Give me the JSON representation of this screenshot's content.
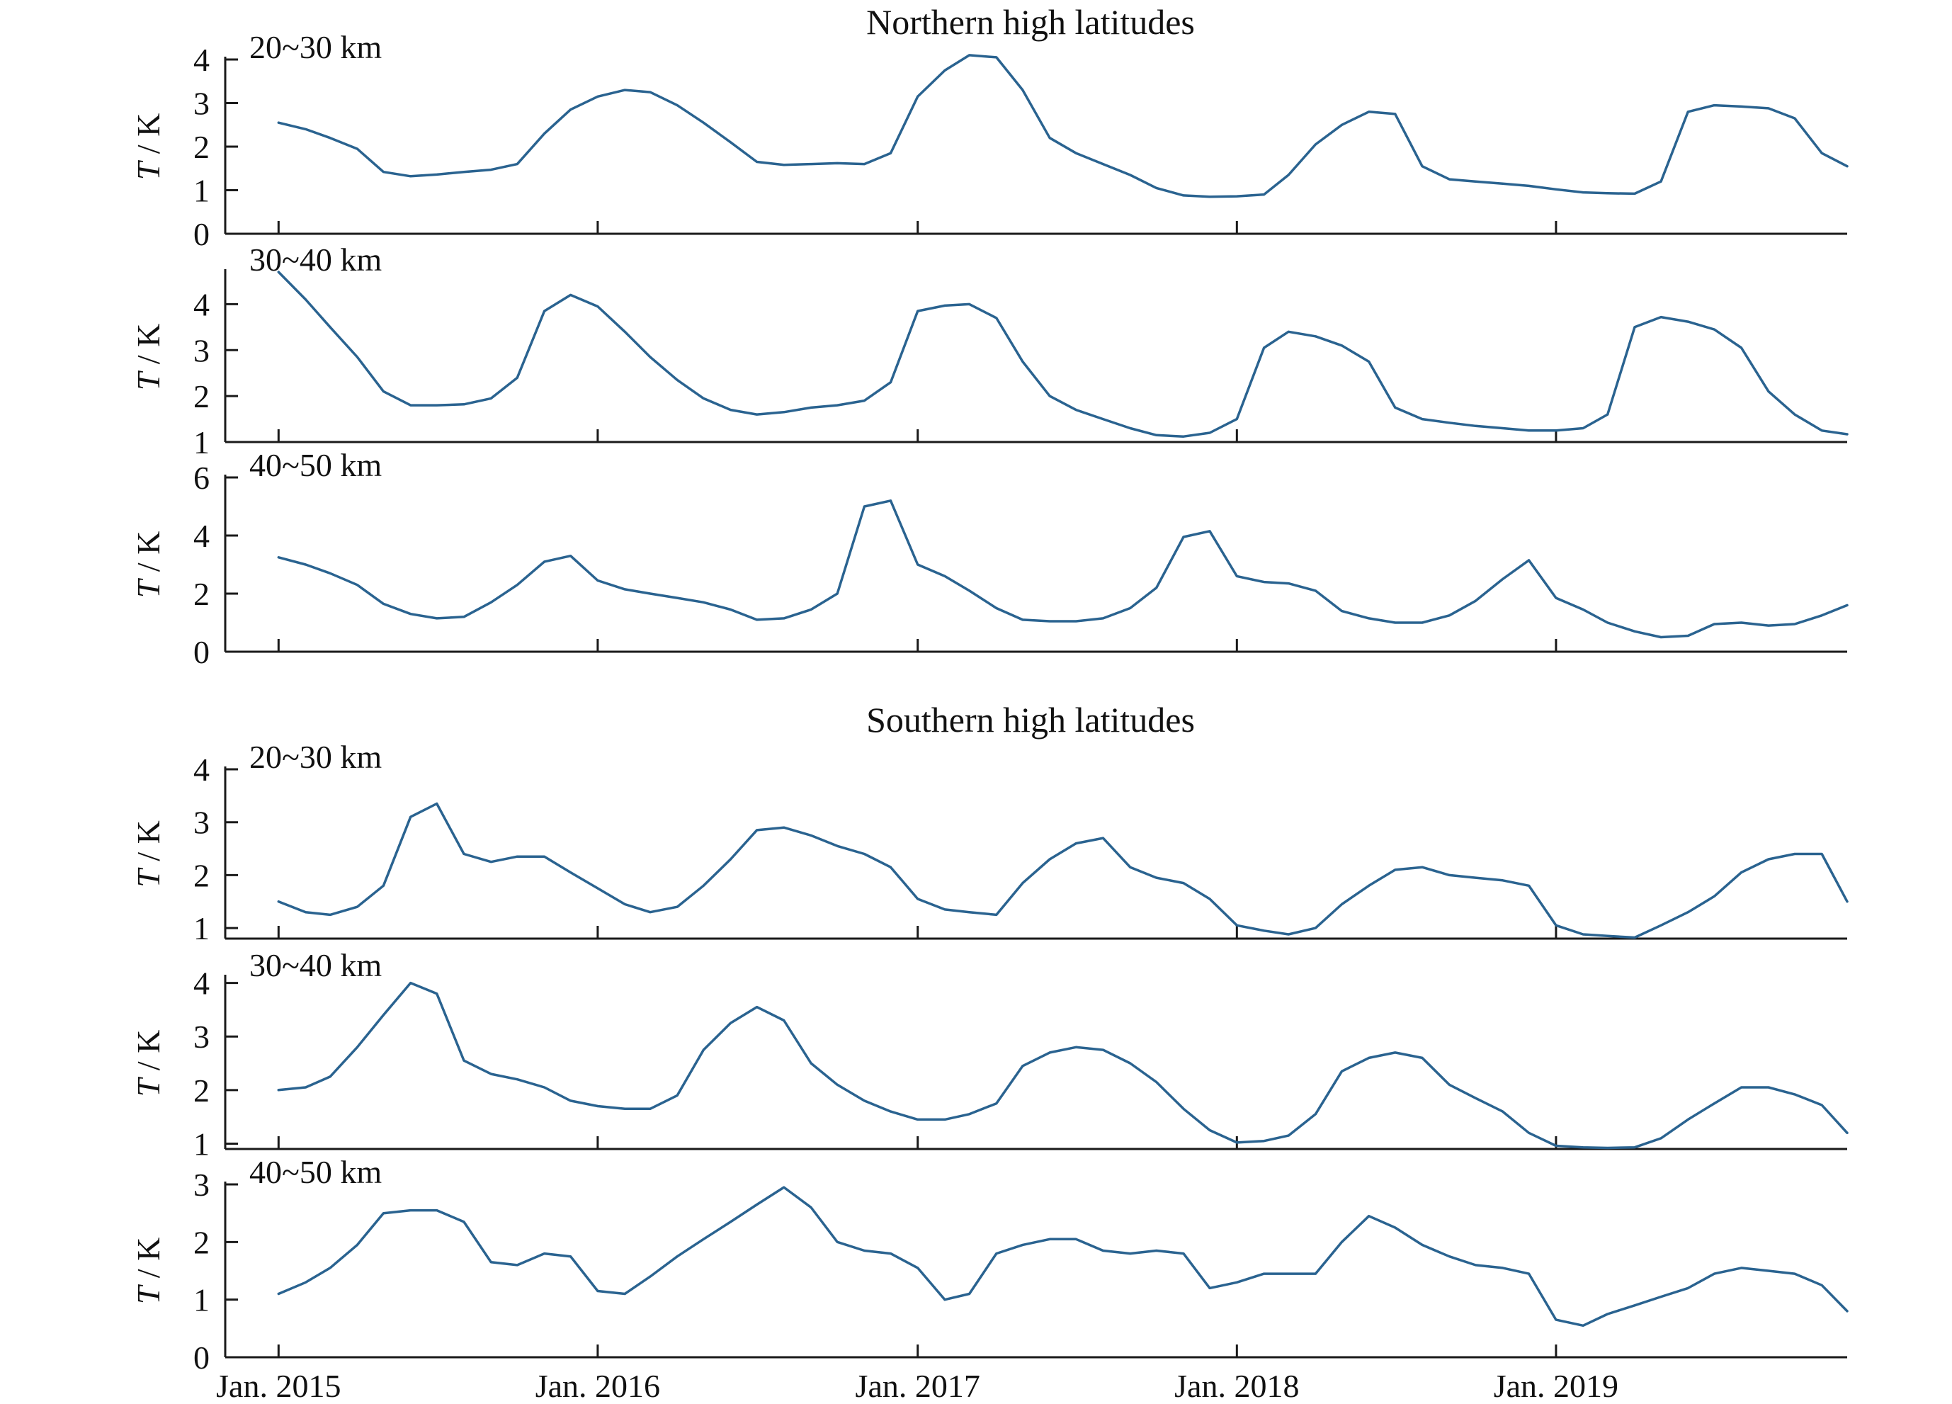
{
  "groups": [
    {
      "title": "Northern high latitudes"
    },
    {
      "title": "Southern high latitudes"
    }
  ],
  "colors": {
    "line": "#2a6390",
    "axis": "#1a1a1a"
  },
  "chart_data": [
    {
      "type": "line",
      "group": "Northern high latitudes",
      "panel_label": "20~30 km",
      "ylabel": "T / K",
      "ylim": [
        0,
        4
      ],
      "yticks": [
        0,
        1,
        2,
        3,
        4
      ],
      "xlim": [
        "2014-11-01",
        "2019-11-30"
      ],
      "xticks": [
        "2015-01-01",
        "2016-01-01",
        "2017-01-01",
        "2018-01-01",
        "2019-01-01"
      ],
      "xtick_labels": [
        "Jan. 2015",
        "Jan. 2016",
        "Jan. 2017",
        "Jan. 2018",
        "Jan. 2019"
      ],
      "grid": false,
      "x": [
        "2015-01-01",
        "2015-02-01",
        "2015-03-01",
        "2015-04-01",
        "2015-05-01",
        "2015-06-01",
        "2015-07-01",
        "2015-08-01",
        "2015-09-01",
        "2015-10-01",
        "2015-11-01",
        "2015-12-01",
        "2016-01-01",
        "2016-02-01",
        "2016-03-01",
        "2016-04-01",
        "2016-05-01",
        "2016-06-01",
        "2016-07-01",
        "2016-08-01",
        "2016-09-01",
        "2016-10-01",
        "2016-11-01",
        "2016-12-01",
        "2017-01-01",
        "2017-02-01",
        "2017-03-01",
        "2017-04-01",
        "2017-05-01",
        "2017-06-01",
        "2017-07-01",
        "2017-08-01",
        "2017-09-01",
        "2017-10-01",
        "2017-11-01",
        "2017-12-01",
        "2018-01-01",
        "2018-02-01",
        "2018-03-01",
        "2018-04-01",
        "2018-05-01",
        "2018-06-01",
        "2018-07-01",
        "2018-08-01",
        "2018-09-01",
        "2018-10-01",
        "2018-11-01",
        "2018-12-01",
        "2019-01-01",
        "2019-02-01",
        "2019-03-01",
        "2019-04-01",
        "2019-05-01",
        "2019-06-01",
        "2019-07-01",
        "2019-08-01",
        "2019-09-01",
        "2019-10-01",
        "2019-11-01",
        "2019-11-30"
      ],
      "series": [
        {
          "values": [
            2.55,
            2.4,
            2.2,
            1.95,
            1.42,
            1.32,
            1.36,
            1.42,
            1.47,
            1.6,
            2.3,
            2.85,
            3.15,
            3.3,
            3.25,
            2.95,
            2.55,
            2.1,
            1.65,
            1.58,
            1.6,
            1.62,
            1.6,
            1.85,
            3.15,
            3.75,
            4.1,
            4.05,
            3.3,
            2.2,
            1.85,
            1.6,
            1.35,
            1.05,
            0.88,
            0.85,
            0.86,
            0.9,
            1.35,
            2.05,
            2.5,
            2.8,
            2.75,
            1.55,
            1.25,
            1.2,
            1.15,
            1.1,
            1.02,
            0.95,
            0.93,
            0.92,
            1.2,
            2.8,
            2.95,
            2.92,
            2.88,
            2.65,
            1.85,
            1.55
          ]
        }
      ]
    },
    {
      "type": "line",
      "group": "Northern high latitudes",
      "panel_label": "30~40 km",
      "ylabel": "T / K",
      "ylim": [
        1,
        4.7
      ],
      "yticks": [
        1,
        2,
        3,
        4
      ],
      "xlim": [
        "2014-11-01",
        "2019-11-30"
      ],
      "xticks": [
        "2015-01-01",
        "2016-01-01",
        "2017-01-01",
        "2018-01-01",
        "2019-01-01"
      ],
      "grid": false,
      "x": [
        "2015-01-01",
        "2015-02-01",
        "2015-03-01",
        "2015-04-01",
        "2015-05-01",
        "2015-06-01",
        "2015-07-01",
        "2015-08-01",
        "2015-09-01",
        "2015-10-01",
        "2015-11-01",
        "2015-12-01",
        "2016-01-01",
        "2016-02-01",
        "2016-03-01",
        "2016-04-01",
        "2016-05-01",
        "2016-06-01",
        "2016-07-01",
        "2016-08-01",
        "2016-09-01",
        "2016-10-01",
        "2016-11-01",
        "2016-12-01",
        "2017-01-01",
        "2017-02-01",
        "2017-03-01",
        "2017-04-01",
        "2017-05-01",
        "2017-06-01",
        "2017-07-01",
        "2017-08-01",
        "2017-09-01",
        "2017-10-01",
        "2017-11-01",
        "2017-12-01",
        "2018-01-01",
        "2018-02-01",
        "2018-03-01",
        "2018-04-01",
        "2018-05-01",
        "2018-06-01",
        "2018-07-01",
        "2018-08-01",
        "2018-09-01",
        "2018-10-01",
        "2018-11-01",
        "2018-12-01",
        "2019-01-01",
        "2019-02-01",
        "2019-03-01",
        "2019-04-01",
        "2019-05-01",
        "2019-06-01",
        "2019-07-01",
        "2019-08-01",
        "2019-09-01",
        "2019-10-01",
        "2019-11-01",
        "2019-11-30"
      ],
      "series": [
        {
          "values": [
            4.7,
            4.1,
            3.5,
            2.85,
            2.1,
            1.8,
            1.8,
            1.82,
            1.95,
            2.4,
            3.85,
            4.2,
            3.95,
            3.4,
            2.85,
            2.35,
            1.95,
            1.7,
            1.6,
            1.65,
            1.75,
            1.8,
            1.9,
            2.3,
            3.85,
            3.97,
            4.0,
            3.7,
            2.75,
            2.0,
            1.7,
            1.5,
            1.3,
            1.15,
            1.12,
            1.2,
            1.5,
            3.05,
            3.4,
            3.3,
            3.1,
            2.75,
            1.75,
            1.5,
            1.42,
            1.35,
            1.3,
            1.25,
            1.25,
            1.3,
            1.6,
            3.5,
            3.72,
            3.62,
            3.45,
            3.05,
            2.1,
            1.6,
            1.25,
            1.17
          ]
        }
      ]
    },
    {
      "type": "line",
      "group": "Northern high latitudes",
      "panel_label": "40~50 km",
      "ylabel": "T / K",
      "ylim": [
        0,
        6
      ],
      "yticks": [
        0,
        2,
        4,
        6
      ],
      "xlim": [
        "2014-11-01",
        "2019-11-30"
      ],
      "xticks": [
        "2015-01-01",
        "2016-01-01",
        "2017-01-01",
        "2018-01-01",
        "2019-01-01"
      ],
      "grid": false,
      "x": [
        "2015-01-01",
        "2015-02-01",
        "2015-03-01",
        "2015-04-01",
        "2015-05-01",
        "2015-06-01",
        "2015-07-01",
        "2015-08-01",
        "2015-09-01",
        "2015-10-01",
        "2015-11-01",
        "2015-12-01",
        "2016-01-01",
        "2016-02-01",
        "2016-03-01",
        "2016-04-01",
        "2016-05-01",
        "2016-06-01",
        "2016-07-01",
        "2016-08-01",
        "2016-09-01",
        "2016-10-01",
        "2016-11-01",
        "2016-12-01",
        "2017-01-01",
        "2017-02-01",
        "2017-03-01",
        "2017-04-01",
        "2017-05-01",
        "2017-06-01",
        "2017-07-01",
        "2017-08-01",
        "2017-09-01",
        "2017-10-01",
        "2017-11-01",
        "2017-12-01",
        "2018-01-01",
        "2018-02-01",
        "2018-03-01",
        "2018-04-01",
        "2018-05-01",
        "2018-06-01",
        "2018-07-01",
        "2018-08-01",
        "2018-09-01",
        "2018-10-01",
        "2018-11-01",
        "2018-12-01",
        "2019-01-01",
        "2019-02-01",
        "2019-03-01",
        "2019-04-01",
        "2019-05-01",
        "2019-06-01",
        "2019-07-01",
        "2019-08-01",
        "2019-09-01",
        "2019-10-01",
        "2019-11-01",
        "2019-11-30"
      ],
      "series": [
        {
          "values": [
            3.25,
            3.0,
            2.7,
            2.3,
            1.65,
            1.3,
            1.15,
            1.2,
            1.7,
            2.3,
            3.1,
            3.3,
            2.45,
            2.15,
            2.0,
            1.85,
            1.7,
            1.45,
            1.1,
            1.15,
            1.45,
            2.0,
            5.0,
            5.2,
            3.0,
            2.6,
            2.1,
            1.5,
            1.1,
            1.05,
            1.05,
            1.15,
            1.5,
            2.2,
            3.95,
            4.15,
            2.6,
            2.4,
            2.35,
            2.1,
            1.4,
            1.15,
            1.0,
            1.0,
            1.25,
            1.75,
            2.5,
            3.15,
            1.85,
            1.45,
            1.0,
            0.7,
            0.5,
            0.55,
            0.95,
            1.0,
            0.9,
            0.95,
            1.25,
            1.6
          ]
        }
      ]
    },
    {
      "type": "line",
      "group": "Southern high latitudes",
      "panel_label": "20~30 km",
      "ylabel": "T / K",
      "ylim": [
        0.8,
        4
      ],
      "yticks": [
        1,
        2,
        3,
        4
      ],
      "xlim": [
        "2014-11-01",
        "2019-11-30"
      ],
      "xticks": [
        "2015-01-01",
        "2016-01-01",
        "2017-01-01",
        "2018-01-01",
        "2019-01-01"
      ],
      "grid": false,
      "x": [
        "2015-01-01",
        "2015-02-01",
        "2015-03-01",
        "2015-04-01",
        "2015-05-01",
        "2015-06-01",
        "2015-07-01",
        "2015-08-01",
        "2015-09-01",
        "2015-10-01",
        "2015-11-01",
        "2015-12-01",
        "2016-01-01",
        "2016-02-01",
        "2016-03-01",
        "2016-04-01",
        "2016-05-01",
        "2016-06-01",
        "2016-07-01",
        "2016-08-01",
        "2016-09-01",
        "2016-10-01",
        "2016-11-01",
        "2016-12-01",
        "2017-01-01",
        "2017-02-01",
        "2017-03-01",
        "2017-04-01",
        "2017-05-01",
        "2017-06-01",
        "2017-07-01",
        "2017-08-01",
        "2017-09-01",
        "2017-10-01",
        "2017-11-01",
        "2017-12-01",
        "2018-01-01",
        "2018-02-01",
        "2018-03-01",
        "2018-04-01",
        "2018-05-01",
        "2018-06-01",
        "2018-07-01",
        "2018-08-01",
        "2018-09-01",
        "2018-10-01",
        "2018-11-01",
        "2018-12-01",
        "2019-01-01",
        "2019-02-01",
        "2019-03-01",
        "2019-04-01",
        "2019-05-01",
        "2019-06-01",
        "2019-07-01",
        "2019-08-01",
        "2019-09-01",
        "2019-10-01",
        "2019-11-01",
        "2019-11-30"
      ],
      "series": [
        {
          "values": [
            1.5,
            1.3,
            1.25,
            1.4,
            1.8,
            3.1,
            3.35,
            2.4,
            2.25,
            2.35,
            2.35,
            2.05,
            1.75,
            1.45,
            1.3,
            1.4,
            1.8,
            2.3,
            2.85,
            2.9,
            2.75,
            2.55,
            2.4,
            2.15,
            1.55,
            1.35,
            1.3,
            1.25,
            1.85,
            2.3,
            2.6,
            2.7,
            2.15,
            1.95,
            1.85,
            1.55,
            1.05,
            0.95,
            0.88,
            1.0,
            1.45,
            1.8,
            2.1,
            2.15,
            2.0,
            1.95,
            1.9,
            1.8,
            1.05,
            0.88,
            0.85,
            0.82,
            1.05,
            1.3,
            1.6,
            2.05,
            2.3,
            2.4,
            2.4,
            1.5
          ]
        }
      ]
    },
    {
      "type": "line",
      "group": "Southern high latitudes",
      "panel_label": "30~40 km",
      "ylabel": "T / K",
      "ylim": [
        0.9,
        4.1
      ],
      "yticks": [
        1,
        2,
        3,
        4
      ],
      "xlim": [
        "2014-11-01",
        "2019-11-30"
      ],
      "xticks": [
        "2015-01-01",
        "2016-01-01",
        "2017-01-01",
        "2018-01-01",
        "2019-01-01"
      ],
      "grid": false,
      "x": [
        "2015-01-01",
        "2015-02-01",
        "2015-03-01",
        "2015-04-01",
        "2015-05-01",
        "2015-06-01",
        "2015-07-01",
        "2015-08-01",
        "2015-09-01",
        "2015-10-01",
        "2015-11-01",
        "2015-12-01",
        "2016-01-01",
        "2016-02-01",
        "2016-03-01",
        "2016-04-01",
        "2016-05-01",
        "2016-06-01",
        "2016-07-01",
        "2016-08-01",
        "2016-09-01",
        "2016-10-01",
        "2016-11-01",
        "2016-12-01",
        "2017-01-01",
        "2017-02-01",
        "2017-03-01",
        "2017-04-01",
        "2017-05-01",
        "2017-06-01",
        "2017-07-01",
        "2017-08-01",
        "2017-09-01",
        "2017-10-01",
        "2017-11-01",
        "2017-12-01",
        "2018-01-01",
        "2018-02-01",
        "2018-03-01",
        "2018-04-01",
        "2018-05-01",
        "2018-06-01",
        "2018-07-01",
        "2018-08-01",
        "2018-09-01",
        "2018-10-01",
        "2018-11-01",
        "2018-12-01",
        "2019-01-01",
        "2019-02-01",
        "2019-03-01",
        "2019-04-01",
        "2019-05-01",
        "2019-06-01",
        "2019-07-01",
        "2019-08-01",
        "2019-09-01",
        "2019-10-01",
        "2019-11-01",
        "2019-11-30"
      ],
      "series": [
        {
          "values": [
            2.0,
            2.05,
            2.25,
            2.8,
            3.4,
            4.0,
            3.8,
            2.55,
            2.3,
            2.2,
            2.05,
            1.8,
            1.7,
            1.65,
            1.65,
            1.9,
            2.75,
            3.25,
            3.55,
            3.3,
            2.5,
            2.1,
            1.8,
            1.6,
            1.45,
            1.45,
            1.55,
            1.75,
            2.45,
            2.7,
            2.8,
            2.75,
            2.5,
            2.15,
            1.65,
            1.25,
            1.02,
            1.05,
            1.15,
            1.55,
            2.35,
            2.6,
            2.7,
            2.6,
            2.1,
            1.85,
            1.6,
            1.2,
            0.96,
            0.93,
            0.92,
            0.93,
            1.1,
            1.45,
            1.75,
            2.05,
            2.05,
            1.92,
            1.72,
            1.2
          ]
        }
      ]
    },
    {
      "type": "line",
      "group": "Southern high latitudes",
      "panel_label": "40~50 km",
      "ylabel": "T / K",
      "ylim": [
        0,
        3
      ],
      "yticks": [
        0,
        1,
        2,
        3
      ],
      "xlim": [
        "2014-11-01",
        "2019-11-30"
      ],
      "xticks": [
        "2015-01-01",
        "2016-01-01",
        "2017-01-01",
        "2018-01-01",
        "2019-01-01"
      ],
      "xtick_labels": [
        "Jan. 2015",
        "Jan. 2016",
        "Jan. 2017",
        "Jan. 2018",
        "Jan. 2019"
      ],
      "grid": false,
      "x": [
        "2015-01-01",
        "2015-02-01",
        "2015-03-01",
        "2015-04-01",
        "2015-05-01",
        "2015-06-01",
        "2015-07-01",
        "2015-08-01",
        "2015-09-01",
        "2015-10-01",
        "2015-11-01",
        "2015-12-01",
        "2016-01-01",
        "2016-02-01",
        "2016-03-01",
        "2016-04-01",
        "2016-05-01",
        "2016-06-01",
        "2016-07-01",
        "2016-08-01",
        "2016-09-01",
        "2016-10-01",
        "2016-11-01",
        "2016-12-01",
        "2017-01-01",
        "2017-02-01",
        "2017-03-01",
        "2017-04-01",
        "2017-05-01",
        "2017-06-01",
        "2017-07-01",
        "2017-08-01",
        "2017-09-01",
        "2017-10-01",
        "2017-11-01",
        "2017-12-01",
        "2018-01-01",
        "2018-02-01",
        "2018-03-01",
        "2018-04-01",
        "2018-05-01",
        "2018-06-01",
        "2018-07-01",
        "2018-08-01",
        "2018-09-01",
        "2018-10-01",
        "2018-11-01",
        "2018-12-01",
        "2019-01-01",
        "2019-02-01",
        "2019-03-01",
        "2019-04-01",
        "2019-05-01",
        "2019-06-01",
        "2019-07-01",
        "2019-08-01",
        "2019-09-01",
        "2019-10-01",
        "2019-11-01",
        "2019-11-30"
      ],
      "series": [
        {
          "values": [
            1.1,
            1.3,
            1.55,
            1.95,
            2.5,
            2.55,
            2.55,
            2.35,
            1.65,
            1.6,
            1.8,
            1.75,
            1.15,
            1.1,
            1.4,
            1.75,
            2.05,
            2.35,
            2.65,
            2.95,
            2.6,
            2.0,
            1.85,
            1.8,
            1.55,
            1.0,
            1.1,
            1.8,
            1.95,
            2.05,
            2.05,
            1.85,
            1.8,
            1.85,
            1.8,
            1.2,
            1.3,
            1.45,
            1.45,
            1.45,
            2.0,
            2.45,
            2.25,
            1.95,
            1.75,
            1.6,
            1.55,
            1.45,
            0.65,
            0.55,
            0.75,
            0.9,
            1.05,
            1.2,
            1.45,
            1.55,
            1.5,
            1.45,
            1.25,
            0.8
          ]
        }
      ]
    }
  ]
}
